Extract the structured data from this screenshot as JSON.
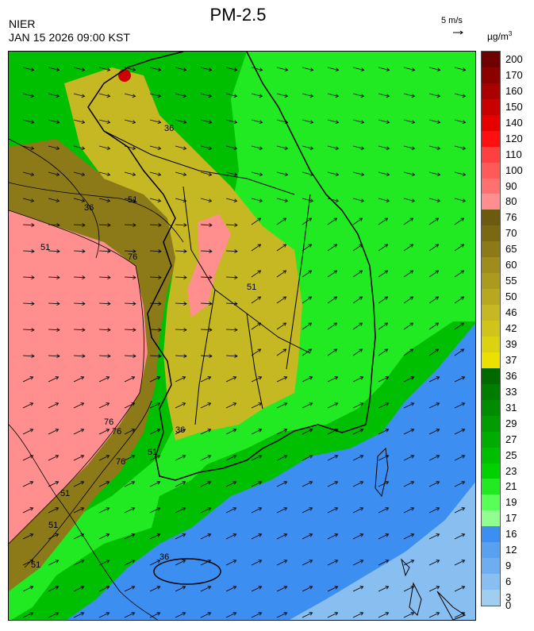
{
  "title": "PM-2.5",
  "agency": "NIER",
  "datetime": "JAN 15 2026 09:00 KST",
  "wind_reference": "5 m/s",
  "unit": "µg/m",
  "unit_sup": "3",
  "colorbar": [
    {
      "label": "200",
      "color": "#6e0000"
    },
    {
      "label": "170",
      "color": "#8c0000"
    },
    {
      "label": "160",
      "color": "#aa0000"
    },
    {
      "label": "150",
      "color": "#c80000"
    },
    {
      "label": "140",
      "color": "#e60000"
    },
    {
      "label": "120",
      "color": "#ff1010"
    },
    {
      "label": "110",
      "color": "#ff4040"
    },
    {
      "label": "100",
      "color": "#ff5a5a"
    },
    {
      "label": "90",
      "color": "#ff7070"
    },
    {
      "label": "80",
      "color": "#ff8e8e"
    },
    {
      "label": "76",
      "color": "#6b5a10"
    },
    {
      "label": "70",
      "color": "#7a6812"
    },
    {
      "label": "65",
      "color": "#8c7a18"
    },
    {
      "label": "60",
      "color": "#9e8c1c"
    },
    {
      "label": "55",
      "color": "#aa9a1e"
    },
    {
      "label": "50",
      "color": "#b8a820"
    },
    {
      "label": "46",
      "color": "#c6b822"
    },
    {
      "label": "42",
      "color": "#d0c41a"
    },
    {
      "label": "39",
      "color": "#dcd212"
    },
    {
      "label": "37",
      "color": "#ece000"
    },
    {
      "label": "36",
      "color": "#006a00"
    },
    {
      "label": "33",
      "color": "#007d00"
    },
    {
      "label": "31",
      "color": "#008c00"
    },
    {
      "label": "29",
      "color": "#009c00"
    },
    {
      "label": "27",
      "color": "#00ac00"
    },
    {
      "label": "25",
      "color": "#00be00"
    },
    {
      "label": "23",
      "color": "#00d200"
    },
    {
      "label": "21",
      "color": "#22ea22"
    },
    {
      "label": "19",
      "color": "#58ff58"
    },
    {
      "label": "17",
      "color": "#90ff90"
    },
    {
      "label": "16",
      "color": "#3c8ef0"
    },
    {
      "label": "12",
      "color": "#5aa0f0"
    },
    {
      "label": "9",
      "color": "#6eaef0"
    },
    {
      "label": "6",
      "color": "#88bef0"
    },
    {
      "label": "3",
      "color": "#a0cef0"
    },
    {
      "label": "0",
      "color": ""
    }
  ],
  "contour_labels": [
    "36",
    "36",
    "51",
    "51",
    "51",
    "51",
    "76",
    "76",
    "76",
    "51",
    "76",
    "51",
    "51",
    "36",
    "36"
  ],
  "map_regions": {
    "west_sea_high": "#ff8e8e",
    "west_sea_mid": "#8c7a18",
    "land_west": "#c6b822",
    "land_east": "#00be00",
    "east_sea": "#22ea22",
    "south_sea": "#5aa0f0",
    "southwest_sea": "#3c8ef0",
    "coast_line": "#000000"
  }
}
